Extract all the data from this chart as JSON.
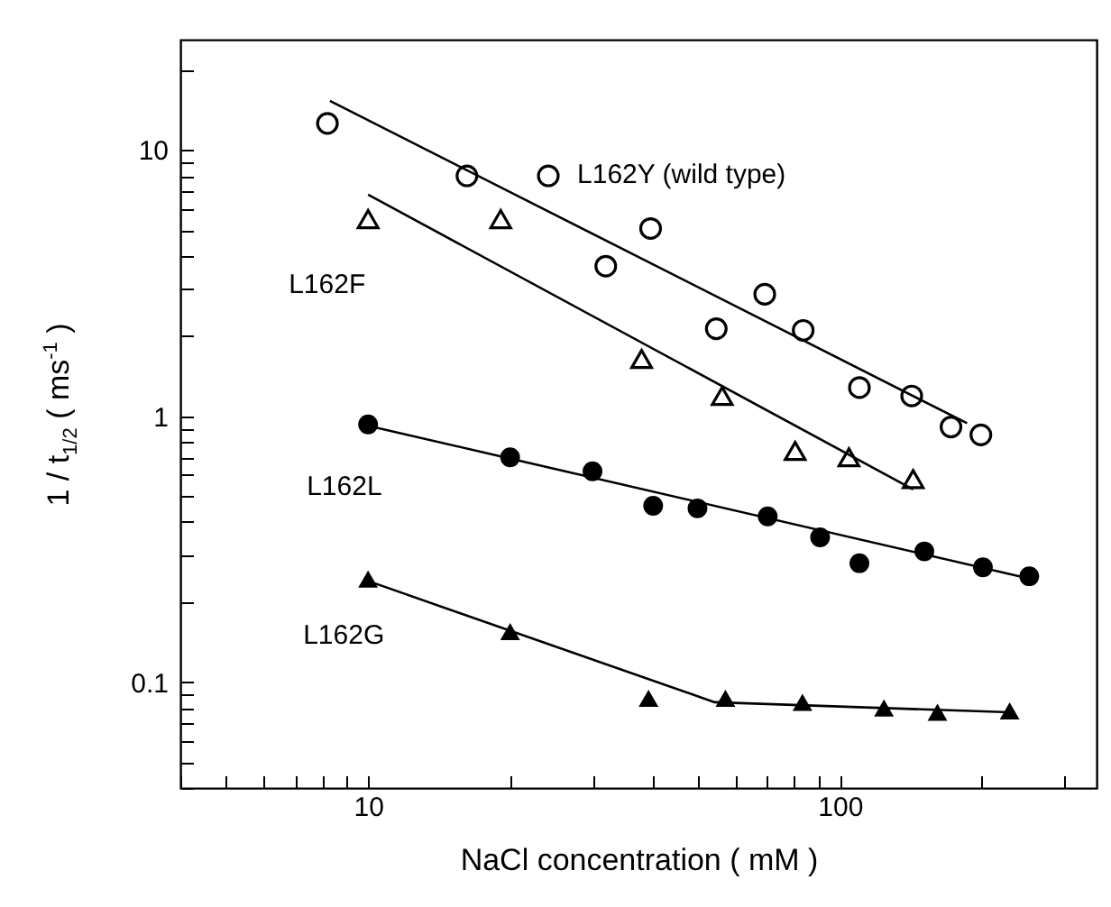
{
  "chart_data": {
    "type": "scatter",
    "xlabel": "NaCl concentration  ( mM )",
    "ylabel": "1 / t$_{1/2}$  ( ms$^{-1}$ )",
    "log": "xy",
    "grid": false,
    "xlim": [
      4,
      350
    ],
    "ylim": [
      0.04,
      26
    ],
    "xticks": [
      {
        "value": 4,
        "label": null
      },
      {
        "value": 5,
        "label": null
      },
      {
        "value": 6,
        "label": null
      },
      {
        "value": 7,
        "label": null
      },
      {
        "value": 8,
        "label": null
      },
      {
        "value": 9,
        "label": null
      },
      10,
      {
        "value": 20,
        "label": null
      },
      {
        "value": 30,
        "label": null
      },
      {
        "value": 40,
        "label": null
      },
      {
        "value": 50,
        "label": null
      },
      {
        "value": 60,
        "label": null
      },
      {
        "value": 70,
        "label": null
      },
      {
        "value": 80,
        "label": null
      },
      {
        "value": 90,
        "label": null
      },
      100,
      {
        "value": 200,
        "label": null
      },
      {
        "value": 300,
        "label": null
      }
    ],
    "yticks": [
      {
        "value": 0.04,
        "label": null
      },
      {
        "value": 0.05,
        "label": null
      },
      {
        "value": 0.06,
        "label": null
      },
      {
        "value": 0.07,
        "label": null
      },
      {
        "value": 0.08,
        "label": null
      },
      {
        "value": 0.09,
        "label": null
      },
      0.1,
      {
        "value": 0.2,
        "label": null
      },
      {
        "value": 0.3,
        "label": null
      },
      {
        "value": 0.4,
        "label": null
      },
      {
        "value": 0.5,
        "label": null
      },
      {
        "value": 0.6,
        "label": null
      },
      {
        "value": 0.7,
        "label": null
      },
      {
        "value": 0.8,
        "label": null
      },
      {
        "value": 0.9,
        "label": null
      },
      1,
      {
        "value": 2,
        "label": null
      },
      {
        "value": 3,
        "label": null
      },
      {
        "value": 4,
        "label": null
      },
      {
        "value": 5,
        "label": null
      },
      {
        "value": 6,
        "label": null
      },
      {
        "value": 7,
        "label": null
      },
      {
        "value": 8,
        "label": null
      },
      {
        "value": 9,
        "label": null
      },
      10,
      {
        "value": 20,
        "label": null
      }
    ],
    "series": [
      {
        "name": "L162Y (wild type)",
        "marker": "circle",
        "color": "#000000",
        "x": [
          8.2,
          16.2,
          24.1,
          31.9,
          39.7,
          54.7,
          69.3,
          83.6,
          110,
          142,
          172,
          199
        ],
        "values": [
          12.6,
          8.0,
          8.0,
          3.66,
          5.07,
          2.13,
          2.87,
          2.1,
          1.28,
          1.19,
          0.91,
          0.85
        ]
      },
      {
        "name": "L162F",
        "marker": "triangle",
        "color": "#000000",
        "x": [
          10,
          19.1,
          38,
          56.3,
          80.4,
          104.5,
          143
        ],
        "values": [
          5.5,
          5.5,
          1.64,
          1.19,
          0.74,
          0.7,
          0.58
        ]
      },
      {
        "name": "L162L",
        "marker": "circle",
        "color": "#000000",
        "x": [
          10,
          20,
          29.9,
          40.2,
          49.9,
          70.3,
          90.8,
          110,
          151,
          201,
          252
        ],
        "values": [
          0.93,
          0.7,
          0.62,
          0.46,
          0.45,
          0.42,
          0.35,
          0.28,
          0.31,
          0.27,
          0.25
        ]
      },
      {
        "name": "L162G",
        "marker": "triangle",
        "color": "#000000",
        "x": [
          10,
          20,
          39.3,
          57.2,
          83.3,
          124,
          161,
          229
        ],
        "values": [
          0.244,
          0.155,
          0.087,
          0.087,
          0.084,
          0.08,
          0.077,
          0.078
        ]
      },
      {
        "type": "line",
        "color": "#000000",
        "x": [
          8.3,
          186
        ],
        "values": [
          15.3,
          0.94
        ]
      },
      {
        "type": "line",
        "color": "#000000",
        "x": [
          10,
          143
        ],
        "values": [
          6.8,
          0.53
        ]
      },
      {
        "type": "line",
        "color": "#000000",
        "x": [
          10,
          252
        ],
        "values": [
          0.92,
          0.245
        ]
      },
      {
        "type": "line",
        "color": "#000000",
        "x": [
          10,
          54.3,
          229
        ],
        "values": [
          0.24,
          0.084,
          0.077
        ]
      }
    ]
  }
}
